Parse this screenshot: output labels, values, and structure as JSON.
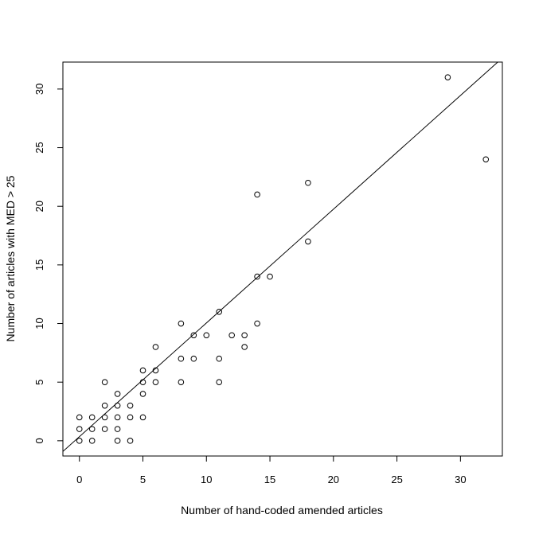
{
  "chart_data": {
    "type": "scatter",
    "xlabel": "Number of hand-coded amended articles",
    "ylabel": "Number of articles with MED > 25",
    "xlim": [
      -1.3,
      33.3
    ],
    "ylim": [
      -1.3,
      32.3
    ],
    "xticks": [
      0,
      5,
      10,
      15,
      20,
      25,
      30
    ],
    "yticks": [
      0,
      5,
      10,
      15,
      20,
      25,
      30
    ],
    "grid": false,
    "series": [
      {
        "marker": "open-circle",
        "points": [
          [
            0,
            0
          ],
          [
            0,
            1
          ],
          [
            0,
            2
          ],
          [
            1,
            0
          ],
          [
            1,
            1
          ],
          [
            1,
            2
          ],
          [
            2,
            1
          ],
          [
            2,
            2
          ],
          [
            2,
            3
          ],
          [
            2,
            5
          ],
          [
            3,
            0
          ],
          [
            3,
            1
          ],
          [
            3,
            2
          ],
          [
            3,
            3
          ],
          [
            3,
            4
          ],
          [
            4,
            0
          ],
          [
            4,
            2
          ],
          [
            4,
            3
          ],
          [
            5,
            2
          ],
          [
            5,
            4
          ],
          [
            5,
            5
          ],
          [
            5,
            6
          ],
          [
            6,
            5
          ],
          [
            6,
            6
          ],
          [
            6,
            8
          ],
          [
            8,
            5
          ],
          [
            8,
            7
          ],
          [
            8,
            10
          ],
          [
            9,
            7
          ],
          [
            9,
            9
          ],
          [
            10,
            9
          ],
          [
            11,
            5
          ],
          [
            11,
            7
          ],
          [
            11,
            11
          ],
          [
            12,
            9
          ],
          [
            13,
            8
          ],
          [
            13,
            9
          ],
          [
            14,
            10
          ],
          [
            14,
            14
          ],
          [
            14,
            21
          ],
          [
            15,
            14
          ],
          [
            18,
            17
          ],
          [
            18,
            22
          ],
          [
            29,
            31
          ],
          [
            32,
            24
          ]
        ]
      }
    ],
    "fit_line": {
      "intercept": 0.35,
      "slope": 0.97
    }
  }
}
